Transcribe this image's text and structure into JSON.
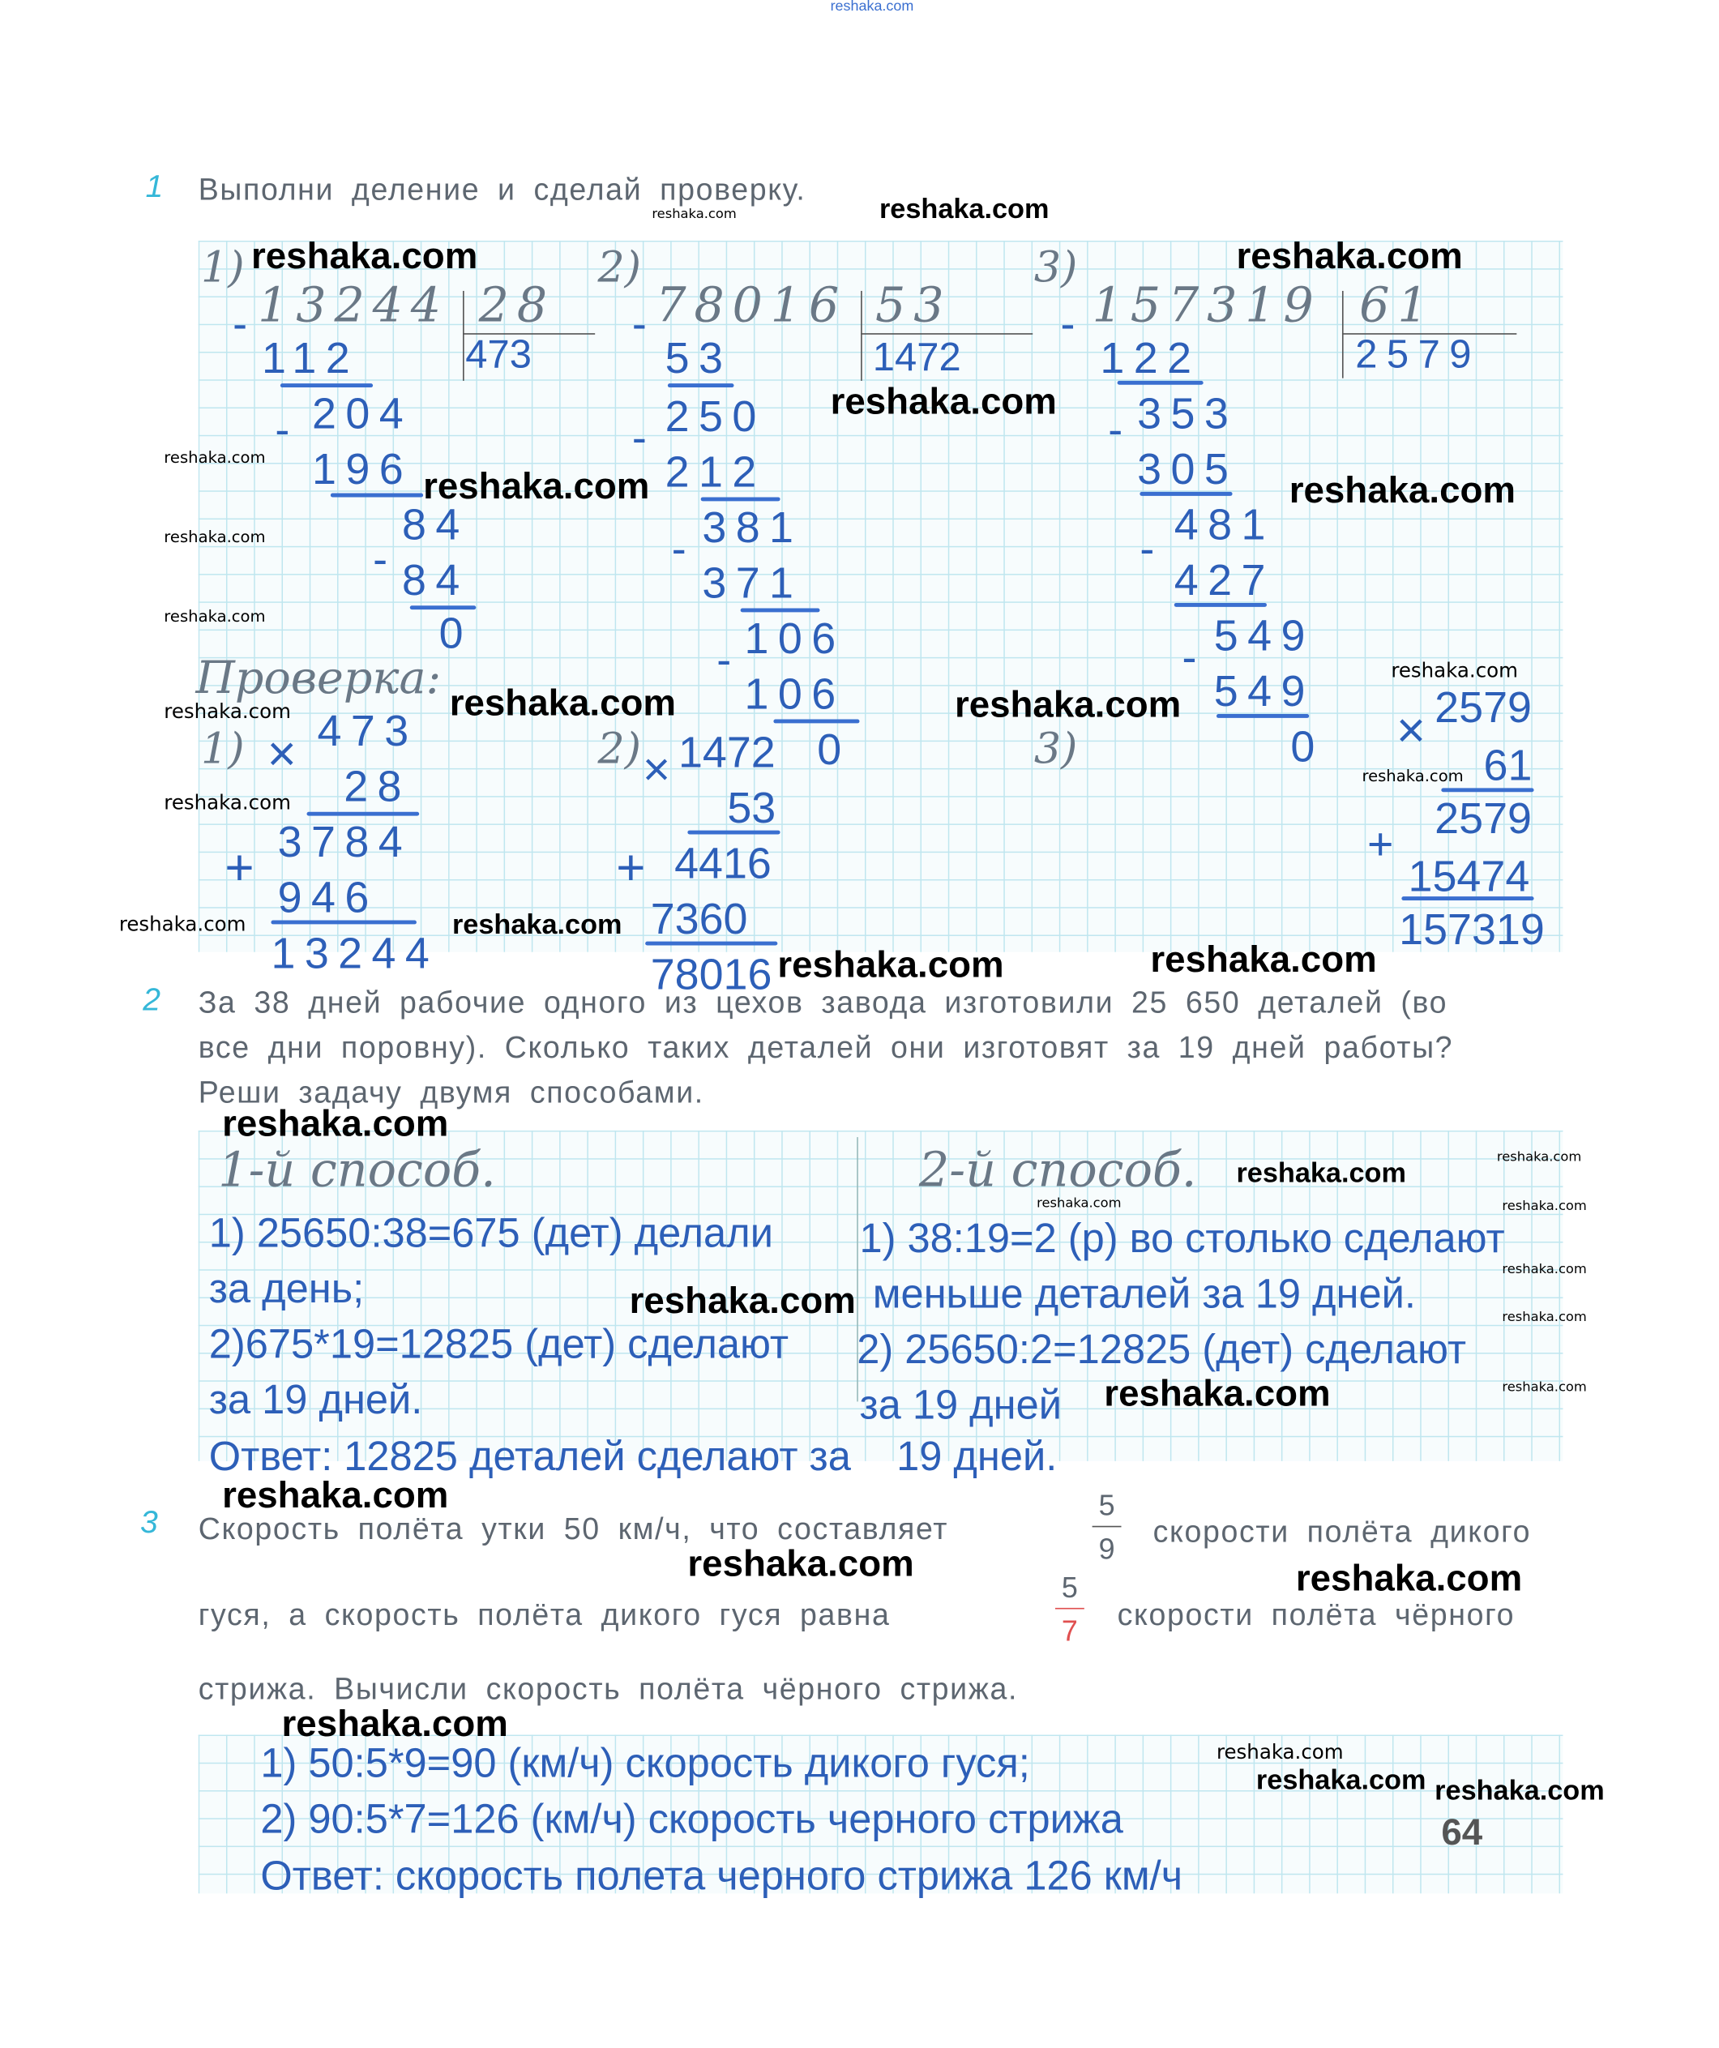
{
  "watermark": "reshaka.com",
  "page_number": "64",
  "colors": {
    "handwriting": "#2d5fb8",
    "task_number": "#35b7d8",
    "grid": "#bfe6ef",
    "print": "#5d6670"
  },
  "task1": {
    "number": "1",
    "text": "Выполни деление и сделай проверку.",
    "div1": {
      "label": "1)",
      "dividend": "13244",
      "divisor": "28",
      "quotient": "473",
      "steps": [
        "112",
        "204",
        "196",
        "84",
        "84",
        "0"
      ]
    },
    "div2": {
      "label": "2)",
      "dividend": "78016",
      "divisor": "53",
      "quotient": "1472",
      "steps": [
        "53",
        "250",
        "212",
        "381",
        "371",
        "106",
        "106",
        "0"
      ]
    },
    "div3": {
      "label": "3)",
      "dividend": "157319",
      "divisor": "61",
      "quotient": "2579",
      "steps": [
        "122",
        "353",
        "305",
        "481",
        "427",
        "549",
        "549",
        "0"
      ]
    },
    "check_title": "Проверка:",
    "check1": {
      "label": "1)",
      "a": "473",
      "b": "28",
      "p1": "3784",
      "p2": "946",
      "result": "13244"
    },
    "check2": {
      "label": "2)",
      "a": "1472",
      "b": "53",
      "p1": "4416",
      "p2": "7360",
      "result": "78016"
    },
    "check3": {
      "label": "3)",
      "a": "2579",
      "b": "61",
      "p1": "2579",
      "p2": "15474",
      "result": "157319"
    },
    "mul": "×",
    "plus": "+",
    "minus": "-"
  },
  "task2": {
    "number": "2",
    "lines": [
      "За 38 дней рабочие одного из цехов завода изготовили 25 650 деталей (во",
      "все дни поровну). Сколько таких деталей они изготовят за 19 дней работы?",
      "Реши задачу двумя способами."
    ],
    "way1": {
      "title": "1-й способ.",
      "lines": [
        "1) 25650:38=675 (дет) делали",
        "за день;",
        "2)675*19=12825 (дет) сделают",
        "за 19 дней."
      ]
    },
    "way2": {
      "title": "2-й способ.",
      "lines": [
        "1) 38:19=2 (р) во столько сделают",
        "меньше деталей за 19 дней.",
        "2) 25650:2=12825 (дет) сделают",
        "за 19 дней"
      ]
    },
    "answer": "Ответ: 12825 деталей сделают за    19 дней."
  },
  "task3": {
    "number": "3",
    "line1a": "Скорость полёта утки 50 км/ч, что составляет",
    "frac1": {
      "num": "5",
      "den": "9"
    },
    "line1b": "скорости полёта дикого",
    "line2a": "гуся, а скорость полёта дикого гуся равна",
    "frac2": {
      "num": "5",
      "den": "7"
    },
    "line2b": "скорости полёта чёрного",
    "line3": "стрижа. Вычисли скорость полёта чёрного стрижа.",
    "answers": [
      "1) 50:5*9=90 (км/ч) скорость дикого гуся;",
      "2) 90:5*7=126 (км/ч) скорость черного стрижа",
      "Ответ: скорость полета черного стрижа 126 км/ч"
    ]
  }
}
